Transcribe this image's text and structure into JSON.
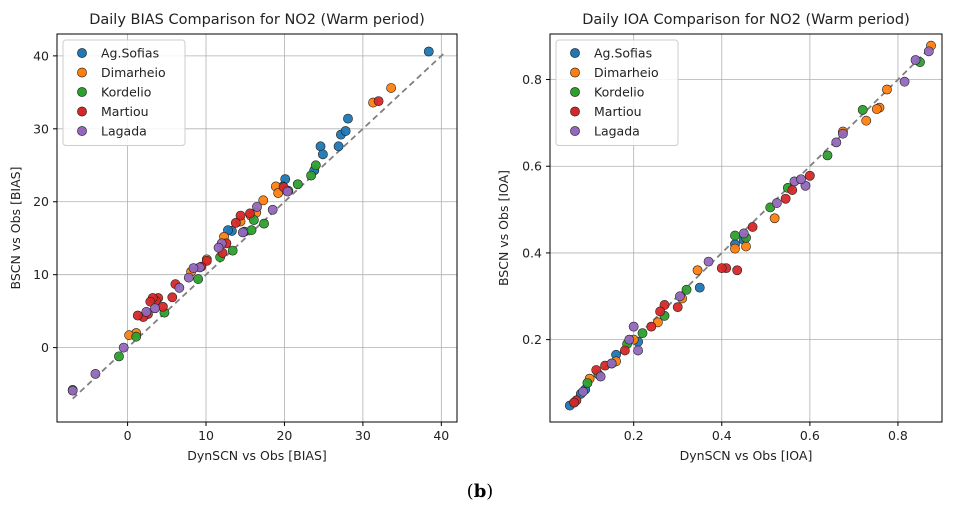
{
  "caption": {
    "open": "(",
    "label": "b",
    "close": ")"
  },
  "chart_data": [
    {
      "type": "scatter",
      "title": "Daily BIAS Comparison for NO2 (Warm period)",
      "xlabel": "DynSCN vs Obs [BIAS]",
      "ylabel": "BSCN vs Obs [BIAS]",
      "xlim": [
        -9,
        42
      ],
      "ylim": [
        -10.2,
        43
      ],
      "xticks": [
        0,
        10,
        20,
        30,
        40
      ],
      "yticks": [
        0,
        10,
        20,
        30,
        40
      ],
      "tick_labels_x": [
        "0",
        "10",
        "20",
        "30",
        "40"
      ],
      "tick_labels_y": [
        "0",
        "10",
        "20",
        "30",
        "40"
      ],
      "grid": true,
      "legend_position": "top-left",
      "reference_line": {
        "style": "dashed",
        "color": "#808080",
        "from": [
          -7,
          -7
        ],
        "to": [
          40.5,
          40.5
        ]
      },
      "series": [
        {
          "name": "Ag.Sofias",
          "color": "#1f77b4",
          "x": [
            38.4,
            28.1,
            27.2,
            27.8,
            26.9,
            24.6,
            24.9,
            23.8,
            20.1,
            19.8,
            14.9,
            13.3,
            12.8
          ],
          "y": [
            40.6,
            31.4,
            29.2,
            29.7,
            27.6,
            27.6,
            26.5,
            24.3,
            23.1,
            22.1,
            15.9,
            16.0,
            16.1
          ]
        },
        {
          "name": "Dimarheio",
          "color": "#ff7f0e",
          "x": [
            33.6,
            31.3,
            18.9,
            17.3,
            15.7,
            14.4,
            12.3,
            10.1,
            8.1,
            1.1,
            0.2,
            19.2,
            16.4
          ],
          "y": [
            35.6,
            33.6,
            22.1,
            20.2,
            18.1,
            17.3,
            15.2,
            12.1,
            10.4,
            2.0,
            1.7,
            21.2,
            18.5
          ]
        },
        {
          "name": "Kordelio",
          "color": "#2ca02c",
          "x": [
            24.0,
            23.4,
            21.7,
            20.5,
            17.4,
            16.1,
            15.8,
            13.4,
            11.8,
            9.0,
            4.7,
            1.1,
            -1.1,
            -7.0
          ],
          "y": [
            25.0,
            23.6,
            22.4,
            21.5,
            17.0,
            17.5,
            16.1,
            13.3,
            12.4,
            9.4,
            4.8,
            1.5,
            -1.2,
            -5.8
          ]
        },
        {
          "name": "Martiou",
          "color": "#d62728",
          "x": [
            32.0,
            20.3,
            19.9,
            15.6,
            14.4,
            13.8,
            12.6,
            12.1,
            10.1,
            9.4,
            6.1,
            5.7,
            4.5,
            3.9,
            3.6,
            3.2,
            2.9,
            2.6,
            2.0,
            1.3
          ],
          "y": [
            33.8,
            21.5,
            22.0,
            18.4,
            18.1,
            17.1,
            14.3,
            13.0,
            11.9,
            11.1,
            8.7,
            6.9,
            5.6,
            6.8,
            6.4,
            6.8,
            6.3,
            4.6,
            4.2,
            4.4
          ]
        },
        {
          "name": "Lagada",
          "color": "#9467bd",
          "x": [
            20.4,
            18.5,
            16.5,
            14.7,
            12.0,
            11.6,
            9.2,
            8.4,
            7.8,
            6.6,
            3.5,
            2.4,
            -0.5,
            -4.1,
            -7.0
          ],
          "y": [
            21.4,
            18.9,
            19.3,
            15.8,
            14.3,
            13.7,
            11.0,
            10.9,
            9.6,
            8.2,
            5.4,
            4.9,
            0.0,
            -3.6,
            -5.9
          ]
        }
      ]
    },
    {
      "type": "scatter",
      "title": "Daily IOA Comparison for NO2 (Warm period)",
      "xlabel": "DynSCN vs Obs [IOA]",
      "ylabel": "BSCN vs Obs [IOA]",
      "xlim": [
        0.01,
        0.9
      ],
      "ylim": [
        0.01,
        0.905
      ],
      "xticks": [
        0.2,
        0.4,
        0.6,
        0.8
      ],
      "yticks": [
        0.2,
        0.4,
        0.6,
        0.8
      ],
      "tick_labels_x": [
        "0.2",
        "0.4",
        "0.6",
        "0.8"
      ],
      "tick_labels_y": [
        "0.2",
        "0.4",
        "0.6",
        "0.8"
      ],
      "grid": true,
      "legend_position": "top-left",
      "reference_line": {
        "style": "dashed",
        "color": "#808080",
        "from": [
          0.05,
          0.05
        ],
        "to": [
          0.88,
          0.88
        ]
      },
      "series": [
        {
          "name": "Ag.Sofias",
          "color": "#1f77b4",
          "x": [
            0.055,
            0.065,
            0.08,
            0.09,
            0.16,
            0.21,
            0.35,
            0.43,
            0.45
          ],
          "y": [
            0.048,
            0.055,
            0.075,
            0.085,
            0.165,
            0.195,
            0.32,
            0.42,
            0.43
          ]
        },
        {
          "name": "Dimarheio",
          "color": "#ff7f0e",
          "x": [
            0.875,
            0.775,
            0.758,
            0.752,
            0.728,
            0.675,
            0.52,
            0.455,
            0.43,
            0.345,
            0.31,
            0.255,
            0.2,
            0.16,
            0.1
          ],
          "y": [
            0.878,
            0.777,
            0.735,
            0.732,
            0.705,
            0.68,
            0.48,
            0.415,
            0.41,
            0.36,
            0.295,
            0.24,
            0.2,
            0.15,
            0.11
          ]
        },
        {
          "name": "Kordelio",
          "color": "#2ca02c",
          "x": [
            0.85,
            0.72,
            0.64,
            0.55,
            0.51,
            0.455,
            0.43,
            0.32,
            0.27,
            0.22,
            0.185,
            0.15,
            0.12,
            0.095
          ],
          "y": [
            0.84,
            0.73,
            0.625,
            0.55,
            0.505,
            0.435,
            0.44,
            0.315,
            0.255,
            0.215,
            0.19,
            0.145,
            0.12,
            0.1
          ]
        },
        {
          "name": "Martiou",
          "color": "#d62728",
          "x": [
            0.6,
            0.56,
            0.545,
            0.47,
            0.435,
            0.41,
            0.4,
            0.3,
            0.27,
            0.26,
            0.24,
            0.18,
            0.135,
            0.115,
            0.07,
            0.065
          ],
          "y": [
            0.578,
            0.545,
            0.525,
            0.46,
            0.36,
            0.365,
            0.365,
            0.275,
            0.28,
            0.265,
            0.23,
            0.175,
            0.14,
            0.13,
            0.06,
            0.055
          ]
        },
        {
          "name": "Lagada",
          "color": "#9467bd",
          "x": [
            0.87,
            0.84,
            0.815,
            0.675,
            0.66,
            0.59,
            0.565,
            0.58,
            0.525,
            0.45,
            0.37,
            0.305,
            0.21,
            0.2,
            0.19,
            0.15,
            0.125,
            0.085
          ],
          "y": [
            0.865,
            0.845,
            0.795,
            0.675,
            0.655,
            0.555,
            0.565,
            0.57,
            0.515,
            0.445,
            0.38,
            0.3,
            0.175,
            0.23,
            0.2,
            0.145,
            0.115,
            0.08
          ]
        }
      ]
    }
  ]
}
